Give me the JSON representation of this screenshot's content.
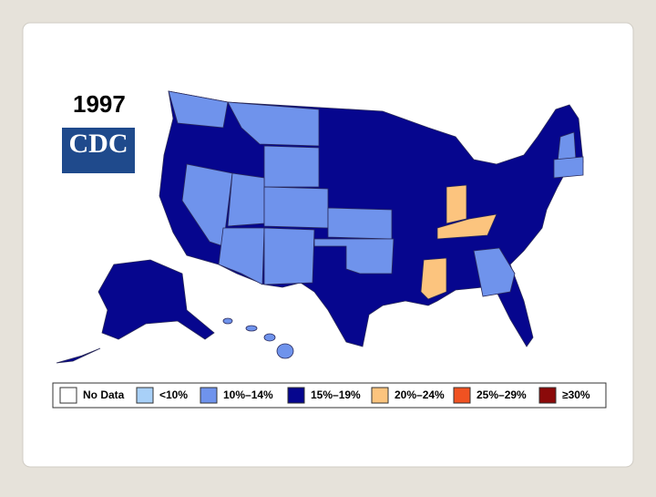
{
  "title": "1997",
  "logo": "CDC",
  "legend": [
    {
      "label": "No Data",
      "color": "#ffffff"
    },
    {
      "label": "<10%",
      "color": "#a8d0f8"
    },
    {
      "label": "10%–14%",
      "color": "#6f93ec"
    },
    {
      "label": "15%–19%",
      "color": "#06068e"
    },
    {
      "label": "20%–24%",
      "color": "#fcc47e"
    },
    {
      "label": "25%–29%",
      "color": "#f05222"
    },
    {
      "label": "≥30%",
      "color": "#8b0a0a"
    }
  ]
}
